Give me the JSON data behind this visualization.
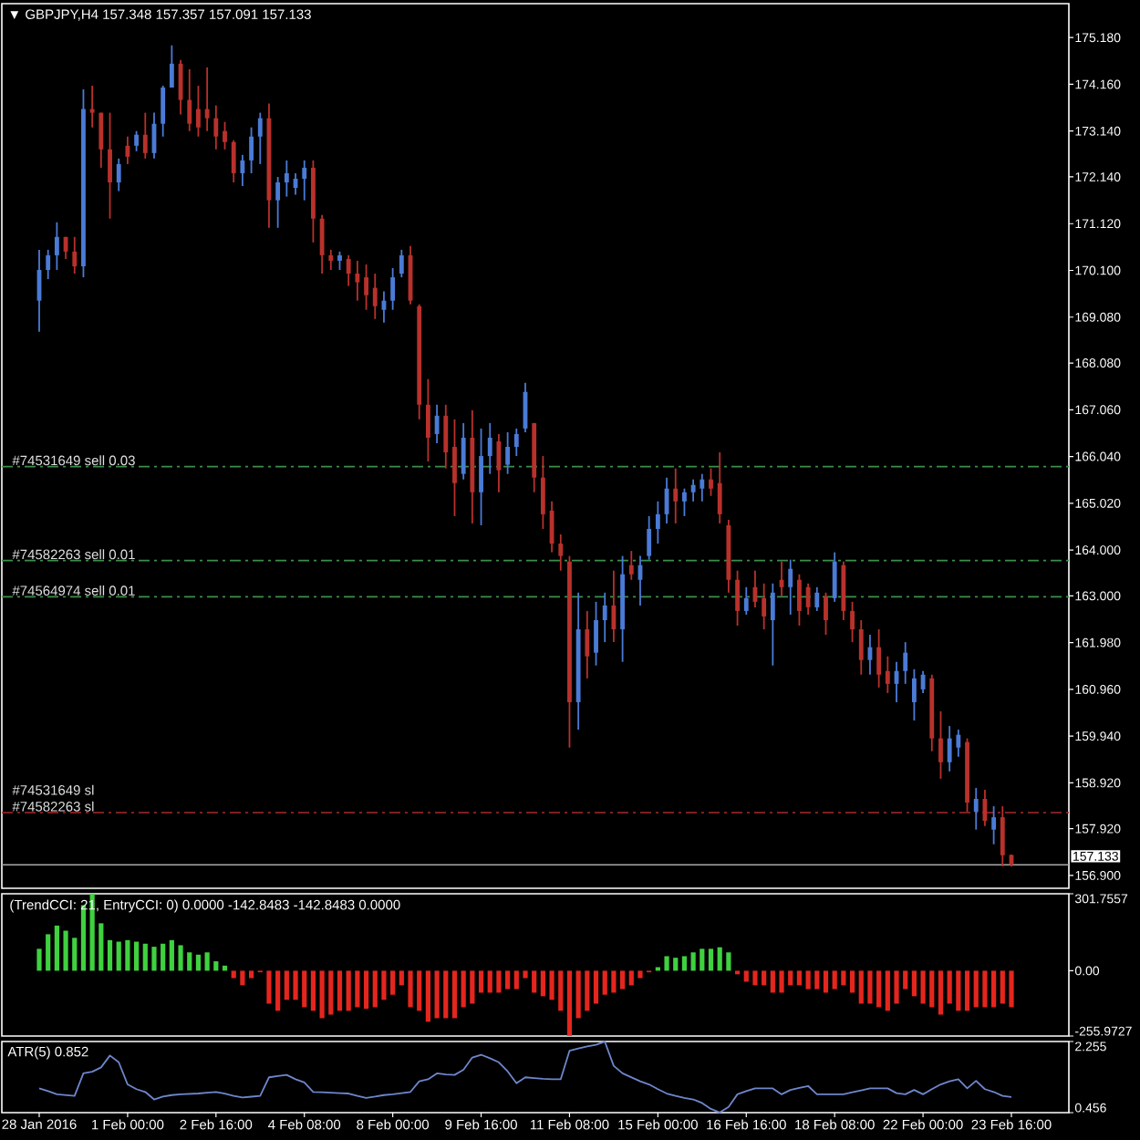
{
  "chart_data": [
    {
      "type": "candlestick",
      "title": "▼ GBPJPY,H4 157.348 157.357 157.091 157.133",
      "categories": [
        null,
        null,
        null,
        null,
        null,
        null,
        null,
        null,
        null,
        null,
        null,
        null,
        null,
        null,
        null,
        null,
        null,
        null,
        null,
        null,
        null,
        null,
        null,
        null,
        null,
        null,
        null,
        null,
        null,
        null,
        null,
        null,
        null,
        null,
        null,
        null,
        null,
        null,
        null,
        null,
        null,
        null,
        null,
        null,
        null,
        null,
        null,
        null,
        null,
        null,
        null,
        null,
        null,
        null,
        null,
        null,
        null,
        null,
        null,
        null,
        null,
        null,
        null,
        null,
        null,
        null,
        null,
        null,
        null,
        null,
        null,
        null,
        null,
        null,
        null,
        null,
        null,
        null,
        null,
        null,
        null,
        null,
        null,
        null,
        null,
        null,
        null,
        null,
        null,
        null,
        null,
        null,
        null,
        null,
        null,
        null,
        null,
        null,
        null,
        null,
        null,
        null,
        null,
        null,
        null,
        null,
        null,
        null,
        null,
        null,
        null
      ],
      "ohlc": [
        [
          169.44,
          170.55,
          168.76,
          170.11
        ],
        [
          170.11,
          170.55,
          169.91,
          170.43
        ],
        [
          170.43,
          171.15,
          170.11,
          170.83
        ],
        [
          170.83,
          170.83,
          170.35,
          170.51
        ],
        [
          170.51,
          170.83,
          170.03,
          170.19
        ],
        [
          170.19,
          174.05,
          169.95,
          173.62
        ],
        [
          173.62,
          174.13,
          173.22,
          173.54
        ],
        [
          173.54,
          173.54,
          172.34,
          172.74
        ],
        [
          172.74,
          173.54,
          171.23,
          172.02
        ],
        [
          172.02,
          172.54,
          171.83,
          172.42
        ],
        [
          172.82,
          173.02,
          172.42,
          172.58
        ],
        [
          172.82,
          173.14,
          172.7,
          173.06
        ],
        [
          173.06,
          173.54,
          172.54,
          172.66
        ],
        [
          172.66,
          173.54,
          172.54,
          173.3
        ],
        [
          173.3,
          174.13,
          173.02,
          174.09
        ],
        [
          174.09,
          175.01,
          174.09,
          174.61
        ],
        [
          174.61,
          174.69,
          173.5,
          173.82
        ],
        [
          173.82,
          174.49,
          173.14,
          173.3
        ],
        [
          173.62,
          174.13,
          173.02,
          173.22
        ],
        [
          173.62,
          174.53,
          173.14,
          173.42
        ],
        [
          173.42,
          173.7,
          172.74,
          173.02
        ],
        [
          173.14,
          173.34,
          172.74,
          172.9
        ],
        [
          172.9,
          172.94,
          172.02,
          172.22
        ],
        [
          172.22,
          172.62,
          171.94,
          172.5
        ],
        [
          172.5,
          173.22,
          172.22,
          173.02
        ],
        [
          173.02,
          173.54,
          172.42,
          173.42
        ],
        [
          173.42,
          173.74,
          171.03,
          171.63
        ],
        [
          171.63,
          172.14,
          171.03,
          172.02
        ],
        [
          172.02,
          172.5,
          171.71,
          172.22
        ],
        [
          171.9,
          172.22,
          171.75,
          172.1
        ],
        [
          172.1,
          172.5,
          171.63,
          172.34
        ],
        [
          172.34,
          172.5,
          170.71,
          171.23
        ],
        [
          171.23,
          171.31,
          170.03,
          170.43
        ],
        [
          170.43,
          170.55,
          170.11,
          170.31
        ],
        [
          170.31,
          170.51,
          170.11,
          170.43
        ],
        [
          170.35,
          170.43,
          169.76,
          170.03
        ],
        [
          170.03,
          170.31,
          169.44,
          169.84
        ],
        [
          169.95,
          170.23,
          169.24,
          169.56
        ],
        [
          169.72,
          170.03,
          169.04,
          169.32
        ],
        [
          169.24,
          169.64,
          168.96,
          169.44
        ],
        [
          169.44,
          170.15,
          169.24,
          169.95
        ],
        [
          170.03,
          170.55,
          169.95,
          170.43
        ],
        [
          170.43,
          170.63,
          169.36,
          169.44
        ],
        [
          169.32,
          169.36,
          166.85,
          167.17
        ],
        [
          167.17,
          167.73,
          165.93,
          166.45
        ],
        [
          166.53,
          167.17,
          166.33,
          166.93
        ],
        [
          166.93,
          167.17,
          165.78,
          166.13
        ],
        [
          166.25,
          166.85,
          164.74,
          165.46
        ],
        [
          165.66,
          166.77,
          165.54,
          166.45
        ],
        [
          166.45,
          167.05,
          164.58,
          165.26
        ],
        [
          165.26,
          166.65,
          164.54,
          166.05
        ],
        [
          166.05,
          166.77,
          165.66,
          166.45
        ],
        [
          166.37,
          166.53,
          165.26,
          165.74
        ],
        [
          165.86,
          166.57,
          165.66,
          166.25
        ],
        [
          166.25,
          166.65,
          166.05,
          166.53
        ],
        [
          166.65,
          167.65,
          166.57,
          167.45
        ],
        [
          166.77,
          166.77,
          165.26,
          165.58
        ],
        [
          165.58,
          166.05,
          164.46,
          164.78
        ],
        [
          164.86,
          165.06,
          163.95,
          164.14
        ],
        [
          164.14,
          164.34,
          163.55,
          163.87
        ],
        [
          163.75,
          163.87,
          159.69,
          160.68
        ],
        [
          160.68,
          163.07,
          160.08,
          162.27
        ],
        [
          162.27,
          162.67,
          161.2,
          161.68
        ],
        [
          161.76,
          162.87,
          161.48,
          162.47
        ],
        [
          162.47,
          163.07,
          161.99,
          162.79
        ],
        [
          162.79,
          163.55,
          161.99,
          162.27
        ],
        [
          162.27,
          163.87,
          161.56,
          163.47
        ],
        [
          163.67,
          163.98,
          163.35,
          163.47
        ],
        [
          163.35,
          163.87,
          162.79,
          163.67
        ],
        [
          163.87,
          164.74,
          163.79,
          164.46
        ],
        [
          164.46,
          165.06,
          164.14,
          164.78
        ],
        [
          164.78,
          165.58,
          164.58,
          165.34
        ],
        [
          165.34,
          165.78,
          164.58,
          165.06
        ],
        [
          165.06,
          165.34,
          164.74,
          165.26
        ],
        [
          165.26,
          165.54,
          165.06,
          165.42
        ],
        [
          165.34,
          165.66,
          165.06,
          165.54
        ],
        [
          165.54,
          165.78,
          165.18,
          165.34
        ],
        [
          165.46,
          166.13,
          164.58,
          164.78
        ],
        [
          164.54,
          164.66,
          163.07,
          163.35
        ],
        [
          163.35,
          163.55,
          162.35,
          162.67
        ],
        [
          162.67,
          163.19,
          162.59,
          162.95
        ],
        [
          163.19,
          163.55,
          162.75,
          162.87
        ],
        [
          162.95,
          163.27,
          162.27,
          162.55
        ],
        [
          162.47,
          163.27,
          161.48,
          163.07
        ],
        [
          163.35,
          163.75,
          162.99,
          163.19
        ],
        [
          163.19,
          163.79,
          162.59,
          163.59
        ],
        [
          163.35,
          163.47,
          162.35,
          162.67
        ],
        [
          163.19,
          163.27,
          162.59,
          162.75
        ],
        [
          162.75,
          163.19,
          162.67,
          163.07
        ],
        [
          162.99,
          163.07,
          162.15,
          162.47
        ],
        [
          162.95,
          163.95,
          162.87,
          163.75
        ],
        [
          163.67,
          163.75,
          162.47,
          162.67
        ],
        [
          162.67,
          162.87,
          161.99,
          162.27
        ],
        [
          162.27,
          162.47,
          161.28,
          161.6
        ],
        [
          161.6,
          162.15,
          161.28,
          161.88
        ],
        [
          161.88,
          162.27,
          161.0,
          161.28
        ],
        [
          161.36,
          161.68,
          160.88,
          161.08
        ],
        [
          161.08,
          161.56,
          160.68,
          161.36
        ],
        [
          161.36,
          161.99,
          161.08,
          161.76
        ],
        [
          160.68,
          161.4,
          160.28,
          161.2
        ],
        [
          160.96,
          161.36,
          160.88,
          161.28
        ],
        [
          161.2,
          161.28,
          159.61,
          159.89
        ],
        [
          159.89,
          160.48,
          159.01,
          159.37
        ],
        [
          159.37,
          160.16,
          159.17,
          159.89
        ],
        [
          159.69,
          160.08,
          159.49,
          159.97
        ],
        [
          159.81,
          159.89,
          158.29,
          158.49
        ],
        [
          158.29,
          158.81,
          157.9,
          158.57
        ],
        [
          158.57,
          158.77,
          157.98,
          158.09
        ],
        [
          157.9,
          158.41,
          157.58,
          158.17
        ],
        [
          158.17,
          158.41,
          157.1,
          157.34
        ],
        [
          157.348,
          157.357,
          157.091,
          157.133
        ]
      ],
      "colors": [
        "#4a7bd6",
        "#4a7bd6",
        "#4a7bd6",
        "#b8312b",
        "#b8312b",
        "#4a7bd6",
        "#b8312b",
        "#b8312b",
        "#b8312b",
        "#4a7bd6",
        "#b8312b",
        "#4a7bd6",
        "#b8312b",
        "#4a7bd6",
        "#4a7bd6",
        "#4a7bd6",
        "#b8312b",
        "#b8312b",
        "#b8312b",
        "#b8312b",
        "#b8312b",
        "#b8312b",
        "#b8312b",
        "#4a7bd6",
        "#4a7bd6",
        "#4a7bd6",
        "#b8312b",
        "#4a7bd6",
        "#4a7bd6",
        "#4a7bd6",
        "#4a7bd6",
        "#b8312b",
        "#b8312b",
        "#b8312b",
        "#4a7bd6",
        "#b8312b",
        "#b8312b",
        "#b8312b",
        "#b8312b",
        "#4a7bd6",
        "#4a7bd6",
        "#4a7bd6",
        "#b8312b",
        "#b8312b",
        "#b8312b",
        "#4a7bd6",
        "#b8312b",
        "#b8312b",
        "#4a7bd6",
        "#b8312b",
        "#4a7bd6",
        "#4a7bd6",
        "#b8312b",
        "#4a7bd6",
        "#4a7bd6",
        "#4a7bd6",
        "#b8312b",
        "#b8312b",
        "#b8312b",
        "#b8312b",
        "#b8312b",
        "#4a7bd6",
        "#b8312b",
        "#4a7bd6",
        "#4a7bd6",
        "#b8312b",
        "#4a7bd6",
        "#b8312b",
        "#4a7bd6",
        "#4a7bd6",
        "#4a7bd6",
        "#4a7bd6",
        "#b8312b",
        "#4a7bd6",
        "#4a7bd6",
        "#4a7bd6",
        "#b8312b",
        "#b8312b",
        "#b8312b",
        "#b8312b",
        "#4a7bd6",
        "#b8312b",
        "#b8312b",
        "#4a7bd6",
        "#b8312b",
        "#4a7bd6",
        "#b8312b",
        "#b8312b",
        "#4a7bd6",
        "#b8312b",
        "#4a7bd6",
        "#b8312b",
        "#b8312b",
        "#b8312b",
        "#4a7bd6",
        "#b8312b",
        "#b8312b",
        "#4a7bd6",
        "#4a7bd6",
        "#4a7bd6",
        "#4a7bd6",
        "#b8312b",
        "#b8312b",
        "#4a7bd6",
        "#4a7bd6",
        "#b8312b",
        "#4a7bd6",
        "#b8312b",
        "#4a7bd6",
        "#b8312b",
        "#b8312b"
      ],
      "ylim": [
        156.62,
        175.92
      ],
      "yticks": [
        {
          "value": 175.18,
          "label": "175.180"
        },
        {
          "value": 174.16,
          "label": "174.160"
        },
        {
          "value": 173.14,
          "label": "173.140"
        },
        {
          "value": 172.14,
          "label": "172.140"
        },
        {
          "value": 171.12,
          "label": "171.120"
        },
        {
          "value": 170.1,
          "label": "170.100"
        },
        {
          "value": 169.08,
          "label": "169.080"
        },
        {
          "value": 168.08,
          "label": "168.080"
        },
        {
          "value": 167.06,
          "label": "167.060"
        },
        {
          "value": 166.04,
          "label": "166.040"
        },
        {
          "value": 165.02,
          "label": "165.020"
        },
        {
          "value": 164.0,
          "label": "164.000"
        },
        {
          "value": 163.0,
          "label": "163.000"
        },
        {
          "value": 161.98,
          "label": "161.980"
        },
        {
          "value": 160.96,
          "label": "160.960"
        },
        {
          "value": 159.94,
          "label": "159.940"
        },
        {
          "value": 158.92,
          "label": "158.920"
        },
        {
          "value": 157.92,
          "label": "157.920"
        },
        {
          "value": 156.9,
          "label": "156.900"
        }
      ],
      "ref_lines": [
        {
          "axis": "y",
          "value": 165.82,
          "label": "#74531649 sell 0.03",
          "color": "#3c8f4a",
          "line_style": "dashdot"
        },
        {
          "axis": "y",
          "value": 163.77,
          "label": "#74582263 sell 0.01",
          "color": "#3c8f4a",
          "line_style": "dashdot"
        },
        {
          "axis": "y",
          "value": 162.98,
          "label": "#74564974 sell 0.01",
          "color": "#3c8f4a",
          "line_style": "dashdot"
        },
        {
          "axis": "y",
          "value": 158.27,
          "label": "#74582263 sl",
          "color": "#a82a2a",
          "line_style": "dashdot"
        },
        {
          "axis": "y",
          "value": 157.133,
          "label": "157.133",
          "color": "#a8a8a8",
          "line_style": "solid"
        }
      ],
      "annotations": [
        {
          "text": "#74531649 sl",
          "y": 158.27
        }
      ]
    },
    {
      "type": "bar",
      "title": "(TrendCCI: 21, EntryCCI: 0)  0.0000 -142.8483 -142.8483 0.0000",
      "categories": [
        null,
        null,
        null,
        null,
        null,
        null,
        null,
        null,
        null,
        null,
        null,
        null,
        null,
        null,
        null,
        null,
        null,
        null,
        null,
        null,
        null,
        null,
        null,
        null,
        null,
        null,
        null,
        null,
        null,
        null,
        null,
        null,
        null,
        null,
        null,
        null,
        null,
        null,
        null,
        null,
        null,
        null,
        null,
        null,
        null,
        null,
        null,
        null,
        null,
        null,
        null,
        null,
        null,
        null,
        null,
        null,
        null,
        null,
        null,
        null,
        null,
        null,
        null,
        null,
        null,
        null,
        null,
        null,
        null,
        null,
        null,
        null,
        null,
        null,
        null,
        null,
        null,
        null,
        null,
        null,
        null,
        null,
        null,
        null,
        null,
        null,
        null,
        null,
        null,
        null,
        null,
        null,
        null,
        null,
        null,
        null,
        null,
        null,
        null,
        null,
        null,
        null,
        null,
        null,
        null,
        null,
        null,
        null,
        null,
        null,
        null
      ],
      "values": [
        86,
        143,
        177,
        157,
        129,
        257,
        301,
        186,
        120,
        114,
        120,
        114,
        106,
        94,
        106,
        120,
        100,
        72,
        63,
        72,
        37,
        20,
        -29,
        -57,
        -29,
        -6,
        -129,
        -157,
        -114,
        -114,
        -143,
        -157,
        -186,
        -172,
        -157,
        -157,
        -143,
        -149,
        -143,
        -114,
        -94,
        -57,
        -143,
        -157,
        -200,
        -186,
        -186,
        -186,
        -143,
        -129,
        -86,
        -86,
        -86,
        -72,
        -72,
        -29,
        -86,
        -100,
        -114,
        -157,
        -255,
        -186,
        -157,
        -129,
        -94,
        -86,
        -72,
        -57,
        -29,
        -6,
        14,
        57,
        51,
        57,
        72,
        86,
        86,
        92,
        72,
        -14,
        -43,
        -57,
        -57,
        -86,
        -86,
        -57,
        -57,
        -72,
        -72,
        -86,
        -72,
        -57,
        -86,
        -129,
        -129,
        -143,
        -157,
        -129,
        -72,
        -100,
        -129,
        -143,
        -172,
        -129,
        -157,
        -157,
        -143,
        -143,
        -143,
        -129,
        -142.8483
      ],
      "colors": [
        "#3fd13f",
        "#3fd13f",
        "#3fd13f",
        "#3fd13f",
        "#3fd13f",
        "#3fd13f",
        "#3fd13f",
        "#3fd13f",
        "#3fd13f",
        "#3fd13f",
        "#3fd13f",
        "#3fd13f",
        "#3fd13f",
        "#3fd13f",
        "#3fd13f",
        "#3fd13f",
        "#3fd13f",
        "#3fd13f",
        "#3fd13f",
        "#3fd13f",
        "#3fd13f",
        "#3fd13f",
        "#e4261e",
        "#e4261e",
        "#e4261e",
        "#e4261e",
        "#e4261e",
        "#e4261e",
        "#e4261e",
        "#e4261e",
        "#e4261e",
        "#e4261e",
        "#e4261e",
        "#e4261e",
        "#e4261e",
        "#e4261e",
        "#e4261e",
        "#e4261e",
        "#e4261e",
        "#e4261e",
        "#e4261e",
        "#e4261e",
        "#e4261e",
        "#e4261e",
        "#e4261e",
        "#e4261e",
        "#e4261e",
        "#e4261e",
        "#e4261e",
        "#e4261e",
        "#e4261e",
        "#e4261e",
        "#e4261e",
        "#e4261e",
        "#e4261e",
        "#e4261e",
        "#e4261e",
        "#e4261e",
        "#e4261e",
        "#e4261e",
        "#e4261e",
        "#e4261e",
        "#e4261e",
        "#e4261e",
        "#e4261e",
        "#e4261e",
        "#e4261e",
        "#e4261e",
        "#e4261e",
        "#e4261e",
        "#3fd13f",
        "#3fd13f",
        "#3fd13f",
        "#3fd13f",
        "#3fd13f",
        "#3fd13f",
        "#3fd13f",
        "#3fd13f",
        "#3fd13f",
        "#e4261e",
        "#e4261e",
        "#e4261e",
        "#e4261e",
        "#e4261e",
        "#e4261e",
        "#e4261e",
        "#e4261e",
        "#e4261e",
        "#e4261e",
        "#e4261e",
        "#e4261e",
        "#e4261e",
        "#e4261e",
        "#e4261e",
        "#e4261e",
        "#e4261e",
        "#e4261e",
        "#e4261e",
        "#e4261e",
        "#e4261e",
        "#e4261e",
        "#e4261e",
        "#e4261e",
        "#e4261e",
        "#e4261e",
        "#e4261e",
        "#e4261e",
        "#e4261e",
        "#e4261e",
        "#e4261e",
        "#e4261e"
      ],
      "ylim": [
        -255.9727,
        301.7557
      ],
      "yticks": [
        301.7557,
        {
          "value": 0,
          "label": "0.00"
        },
        -255.9727
      ]
    },
    {
      "type": "line",
      "title": "ATR(5) 0.852",
      "categories": [
        "28 Jan 2016",
        null,
        null,
        null,
        null,
        null,
        null,
        null,
        null,
        null,
        "1 Feb 00:00",
        null,
        null,
        null,
        null,
        null,
        null,
        null,
        null,
        null,
        "2 Feb 16:00",
        null,
        null,
        null,
        null,
        null,
        null,
        null,
        null,
        null,
        "4 Feb 08:00",
        null,
        null,
        null,
        null,
        null,
        null,
        null,
        null,
        null,
        "8 Feb 00:00",
        null,
        null,
        null,
        null,
        null,
        null,
        null,
        null,
        null,
        "9 Feb 16:00",
        null,
        null,
        null,
        null,
        null,
        null,
        null,
        null,
        null,
        "11 Feb 08:00",
        null,
        null,
        null,
        null,
        null,
        null,
        null,
        null,
        null,
        "15 Feb 00:00",
        null,
        null,
        null,
        null,
        null,
        null,
        null,
        null,
        null,
        "16 Feb 16:00",
        null,
        null,
        null,
        null,
        null,
        null,
        null,
        null,
        null,
        "18 Feb 08:00",
        null,
        null,
        null,
        null,
        null,
        null,
        null,
        null,
        null,
        "22 Feb 00:00",
        null,
        null,
        null,
        null,
        null,
        null,
        null,
        null,
        null,
        "23 Feb 16:00"
      ],
      "values": [
        1.07,
        1.0,
        0.92,
        0.9,
        0.88,
        1.45,
        1.49,
        1.6,
        1.9,
        1.73,
        1.17,
        1.05,
        0.98,
        0.79,
        0.86,
        0.9,
        0.92,
        0.93,
        0.94,
        0.96,
        0.98,
        0.94,
        0.88,
        0.84,
        0.86,
        0.88,
        1.35,
        1.38,
        1.41,
        1.3,
        1.22,
        0.98,
        0.97,
        0.96,
        0.95,
        0.94,
        0.88,
        0.83,
        0.86,
        0.9,
        0.92,
        0.95,
        0.98,
        1.25,
        1.3,
        1.45,
        1.42,
        1.41,
        1.54,
        1.85,
        1.92,
        1.83,
        1.73,
        1.5,
        1.2,
        1.35,
        1.33,
        1.31,
        1.3,
        1.3,
        2.02,
        2.08,
        2.13,
        2.17,
        2.25,
        1.64,
        1.45,
        1.35,
        1.25,
        1.17,
        1.05,
        0.94,
        0.88,
        0.83,
        0.79,
        0.7,
        0.55,
        0.46,
        0.6,
        0.92,
        1.0,
        1.07,
        1.07,
        1.07,
        0.92,
        1.03,
        1.08,
        1.13,
        0.92,
        0.92,
        0.92,
        0.92,
        0.97,
        1.02,
        1.07,
        1.07,
        1.07,
        0.95,
        0.92,
        1.03,
        0.92,
        1.05,
        1.17,
        1.25,
        1.3,
        1.07,
        1.26,
        1.05,
        0.98,
        0.88,
        0.852
      ],
      "color": "#6e86cc",
      "ylim": [
        0.456,
        2.255
      ],
      "yticks": [
        2.255,
        0.456
      ]
    }
  ]
}
